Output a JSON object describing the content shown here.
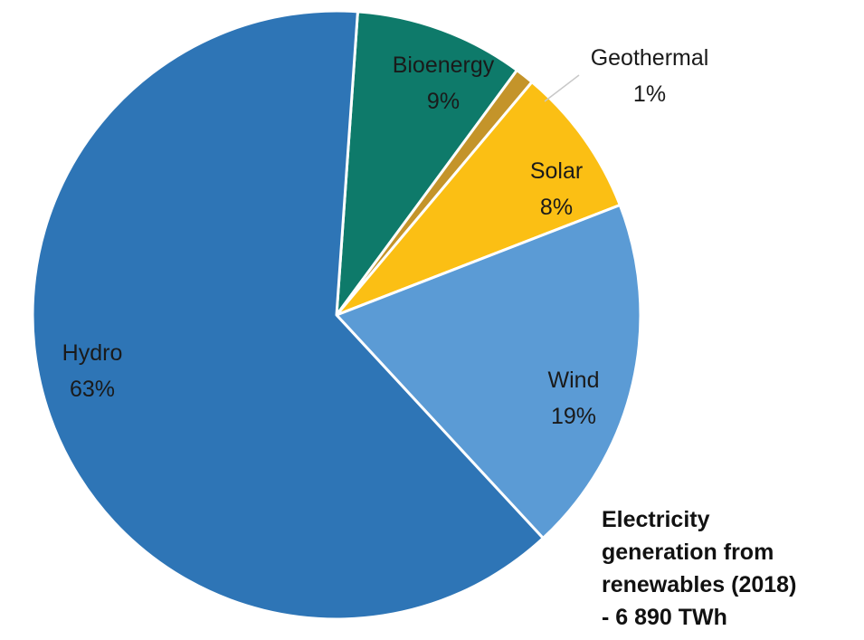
{
  "chart_data": {
    "type": "pie",
    "caption": [
      "Electricity",
      "generation from",
      "renewables (2018)",
      "- 6 890 TWh"
    ],
    "slices": [
      {
        "name": "Bioenergy",
        "value": 9,
        "label": "9%",
        "color": "#0e7a6a"
      },
      {
        "name": "Geothermal",
        "value": 1,
        "label": "1%",
        "color": "#c4942a"
      },
      {
        "name": "Solar",
        "value": 8,
        "label": "8%",
        "color": "#fbbf14"
      },
      {
        "name": "Wind",
        "value": 19,
        "label": "19%",
        "color": "#5b9bd5"
      },
      {
        "name": "Hydro",
        "value": 63,
        "label": "63%",
        "color": "#2e75b6"
      }
    ],
    "start_angle_deg": 4,
    "legend": "none"
  }
}
